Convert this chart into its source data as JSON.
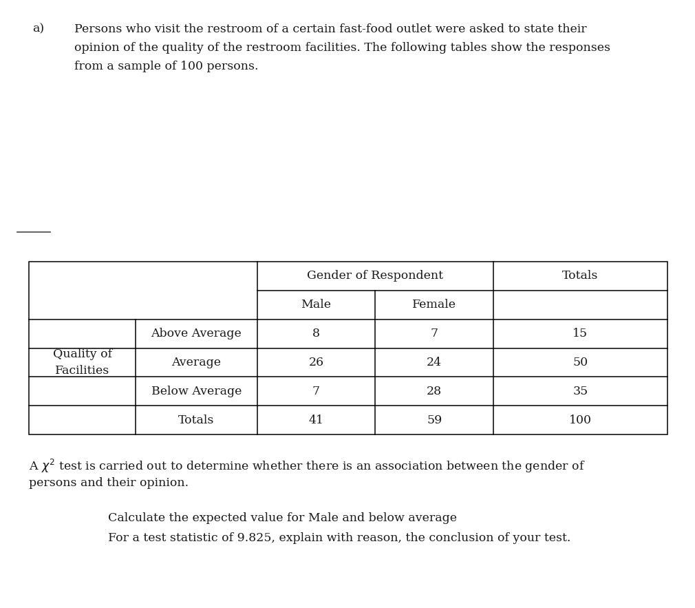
{
  "title_prefix": "a)",
  "intro_line1": "Persons who visit the restroom of a certain fast-food outlet were asked to state their",
  "intro_line2": "opinion of the quality of the restroom facilities. The following tables show the responses",
  "intro_line3": "from a sample of 100 persons.",
  "header_gender": "Gender of Respondent",
  "header_totals": "Totals",
  "col_male": "Male",
  "col_female": "Female",
  "row_label1": "Quality of",
  "row_label2": "Facilities",
  "categories": [
    "Above Average",
    "Average",
    "Below Average",
    "Totals"
  ],
  "data_male": [
    8,
    26,
    7,
    41
  ],
  "data_female": [
    7,
    24,
    28,
    59
  ],
  "data_total": [
    15,
    50,
    35,
    100
  ],
  "chi_line1": "A $\\chi^2$ test is carried out to determine whether there is an association between the gender of",
  "chi_line2": "persons and their opinion.",
  "q_line1": "Calculate the expected value for Male and below average",
  "q_line2": "For a test statistic of 9.825, explain with reason, the conclusion of your test.",
  "bg_color": "#ffffff",
  "text_color": "#1a1a1a",
  "font_size": 12.5,
  "fig_width": 10.1,
  "fig_height": 8.83,
  "dpi": 100
}
